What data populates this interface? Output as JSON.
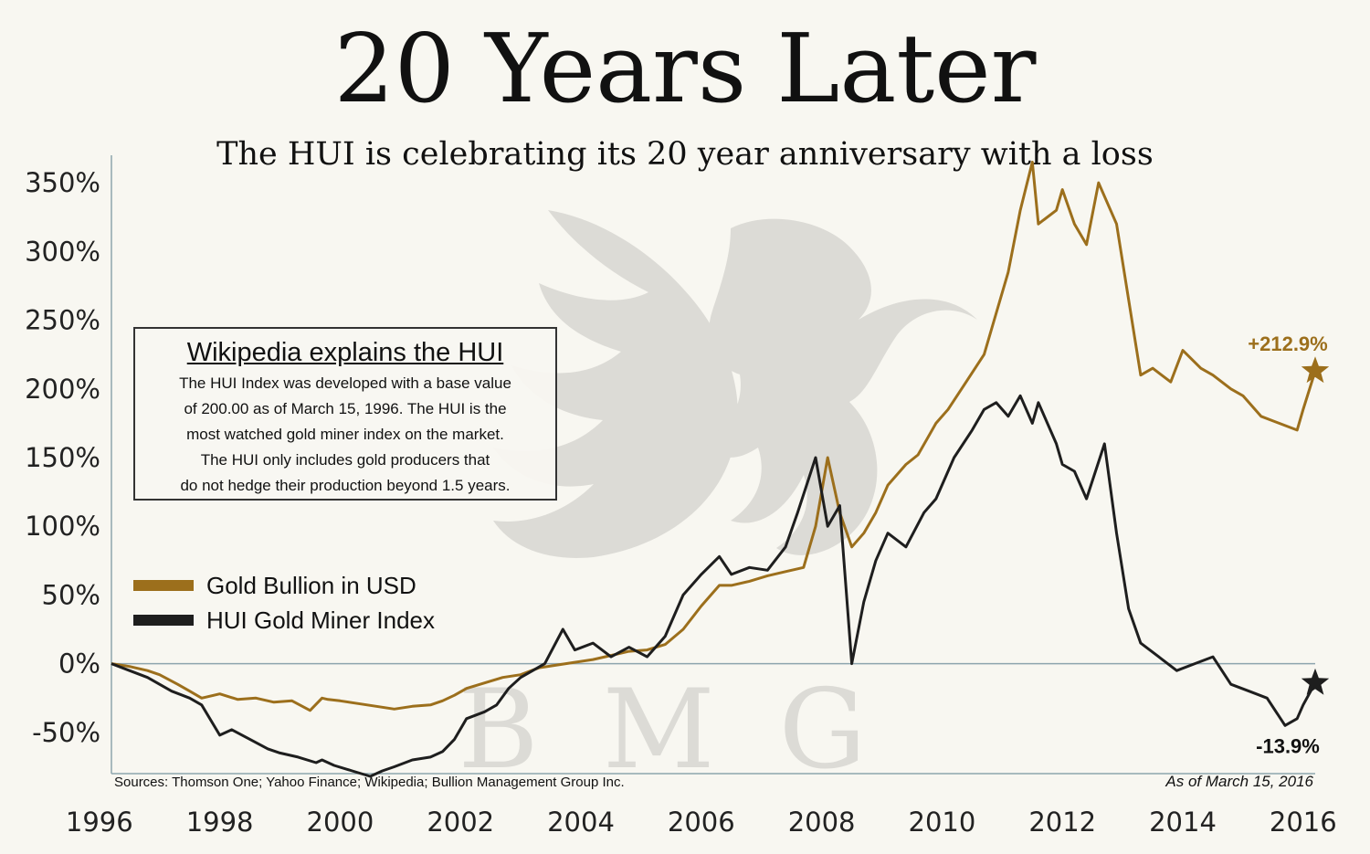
{
  "title": "20 Years Later",
  "subtitle": "The HUI is celebrating its 20 year anniversary with a loss",
  "watermark": "BMG",
  "info_box": {
    "title": "Wikipedia explains the HUI",
    "text": "The HUI Index was developed with a base value\nof 200.00 as of March 15, 1996.  The HUI is the\nmost watched gold miner index on the market.\nThe HUI only includes gold producers that\ndo not hedge their production beyond 1.5 years."
  },
  "legend": [
    {
      "label": "Gold Bullion in USD",
      "color": "#9c6f1c"
    },
    {
      "label": "HUI Gold Miner Index",
      "color": "#1e1e1e"
    }
  ],
  "end_labels": {
    "gold": "+212.9%",
    "hui": "-13.9%"
  },
  "sources": "Sources: Thomson One; Yahoo Finance; Wikipedia; Bullion Management Group Inc.",
  "as_of": "As of March 15, 2016",
  "chart_data": {
    "type": "line",
    "xlim": [
      1996.2,
      2016.2
    ],
    "ylim": [
      -80,
      370
    ],
    "x_ticks": [
      1996,
      1998,
      2000,
      2002,
      2004,
      2006,
      2008,
      2010,
      2012,
      2014,
      2016
    ],
    "x_tick_labels": [
      "1996",
      "1998",
      "2000",
      "2002",
      "2004",
      "2006",
      "2008",
      "2010",
      "2012",
      "2014",
      "2016"
    ],
    "y_ticks": [
      -50,
      0,
      50,
      100,
      150,
      200,
      250,
      300,
      350
    ],
    "y_tick_labels": [
      "-50%",
      "0%",
      "50%",
      "100%",
      "150%",
      "200%",
      "250%",
      "300%",
      "350%"
    ],
    "series": [
      {
        "name": "Gold Bullion in USD",
        "color": "#9c6f1c",
        "x": [
          1996.2,
          1996.5,
          1996.8,
          1997.0,
          1997.3,
          1997.5,
          1997.7,
          1998.0,
          1998.3,
          1998.6,
          1998.9,
          1999.2,
          1999.5,
          1999.7,
          1999.8,
          2000.0,
          2000.3,
          2000.6,
          2000.9,
          2001.2,
          2001.5,
          2001.7,
          2001.9,
          2002.1,
          2002.4,
          2002.7,
          2003.0,
          2003.3,
          2003.6,
          2003.9,
          2004.2,
          2004.5,
          2004.8,
          2005.1,
          2005.4,
          2005.7,
          2006.0,
          2006.3,
          2006.5,
          2006.8,
          2007.1,
          2007.4,
          2007.7,
          2007.9,
          2008.1,
          2008.3,
          2008.5,
          2008.7,
          2008.9,
          2009.1,
          2009.4,
          2009.6,
          2009.9,
          2010.1,
          2010.4,
          2010.7,
          2010.9,
          2011.1,
          2011.3,
          2011.5,
          2011.6,
          2011.9,
          2012.0,
          2012.2,
          2012.4,
          2012.6,
          2012.9,
          2013.1,
          2013.3,
          2013.5,
          2013.8,
          2014.0,
          2014.3,
          2014.5,
          2014.8,
          2015.0,
          2015.3,
          2015.6,
          2015.9,
          2016.0,
          2016.2
        ],
        "y": [
          0,
          -2,
          -5,
          -8,
          -15,
          -20,
          -25,
          -22,
          -26,
          -25,
          -28,
          -27,
          -34,
          -25,
          -26,
          -27,
          -29,
          -31,
          -33,
          -31,
          -30,
          -27,
          -23,
          -18,
          -14,
          -10,
          -8,
          -3,
          -1,
          1,
          3,
          6,
          9,
          10,
          14,
          25,
          42,
          57,
          57,
          60,
          64,
          67,
          70,
          100,
          150,
          110,
          85,
          95,
          110,
          130,
          145,
          152,
          175,
          185,
          205,
          225,
          255,
          285,
          330,
          365,
          320,
          330,
          345,
          320,
          305,
          350,
          320,
          265,
          210,
          215,
          205,
          228,
          215,
          210,
          200,
          195,
          180,
          175,
          170,
          185,
          213
        ]
      },
      {
        "name": "HUI Gold Miner Index",
        "color": "#1e1e1e",
        "x": [
          1996.2,
          1996.5,
          1996.8,
          1997.0,
          1997.2,
          1997.5,
          1997.7,
          1998.0,
          1998.2,
          1998.5,
          1998.8,
          1999.0,
          1999.3,
          1999.6,
          1999.7,
          1999.9,
          2000.2,
          2000.5,
          2000.7,
          2000.9,
          2001.2,
          2001.5,
          2001.7,
          2001.9,
          2002.1,
          2002.4,
          2002.6,
          2002.8,
          2003.0,
          2003.2,
          2003.4,
          2003.7,
          2003.9,
          2004.2,
          2004.5,
          2004.8,
          2005.1,
          2005.4,
          2005.7,
          2006.0,
          2006.3,
          2006.5,
          2006.8,
          2007.1,
          2007.4,
          2007.6,
          2007.9,
          2008.1,
          2008.3,
          2008.5,
          2008.7,
          2008.9,
          2009.1,
          2009.4,
          2009.7,
          2009.9,
          2010.2,
          2010.5,
          2010.7,
          2010.9,
          2011.1,
          2011.3,
          2011.5,
          2011.6,
          2011.9,
          2012.0,
          2012.2,
          2012.4,
          2012.7,
          2012.9,
          2013.1,
          2013.3,
          2013.6,
          2013.9,
          2014.2,
          2014.5,
          2014.8,
          2015.1,
          2015.4,
          2015.7,
          2015.9,
          2016.0,
          2016.2
        ],
        "y": [
          0,
          -5,
          -10,
          -15,
          -20,
          -25,
          -30,
          -52,
          -48,
          -55,
          -62,
          -65,
          -68,
          -72,
          -70,
          -74,
          -78,
          -82,
          -78,
          -75,
          -70,
          -68,
          -64,
          -55,
          -40,
          -35,
          -30,
          -18,
          -10,
          -5,
          0,
          25,
          10,
          15,
          5,
          12,
          5,
          20,
          50,
          65,
          78,
          65,
          70,
          68,
          85,
          110,
          150,
          100,
          115,
          0,
          45,
          75,
          95,
          85,
          110,
          120,
          150,
          170,
          185,
          190,
          180,
          195,
          175,
          190,
          160,
          145,
          140,
          120,
          160,
          95,
          40,
          15,
          5,
          -5,
          0,
          5,
          -15,
          -20,
          -25,
          -45,
          -40,
          -30,
          -14
        ]
      }
    ]
  }
}
